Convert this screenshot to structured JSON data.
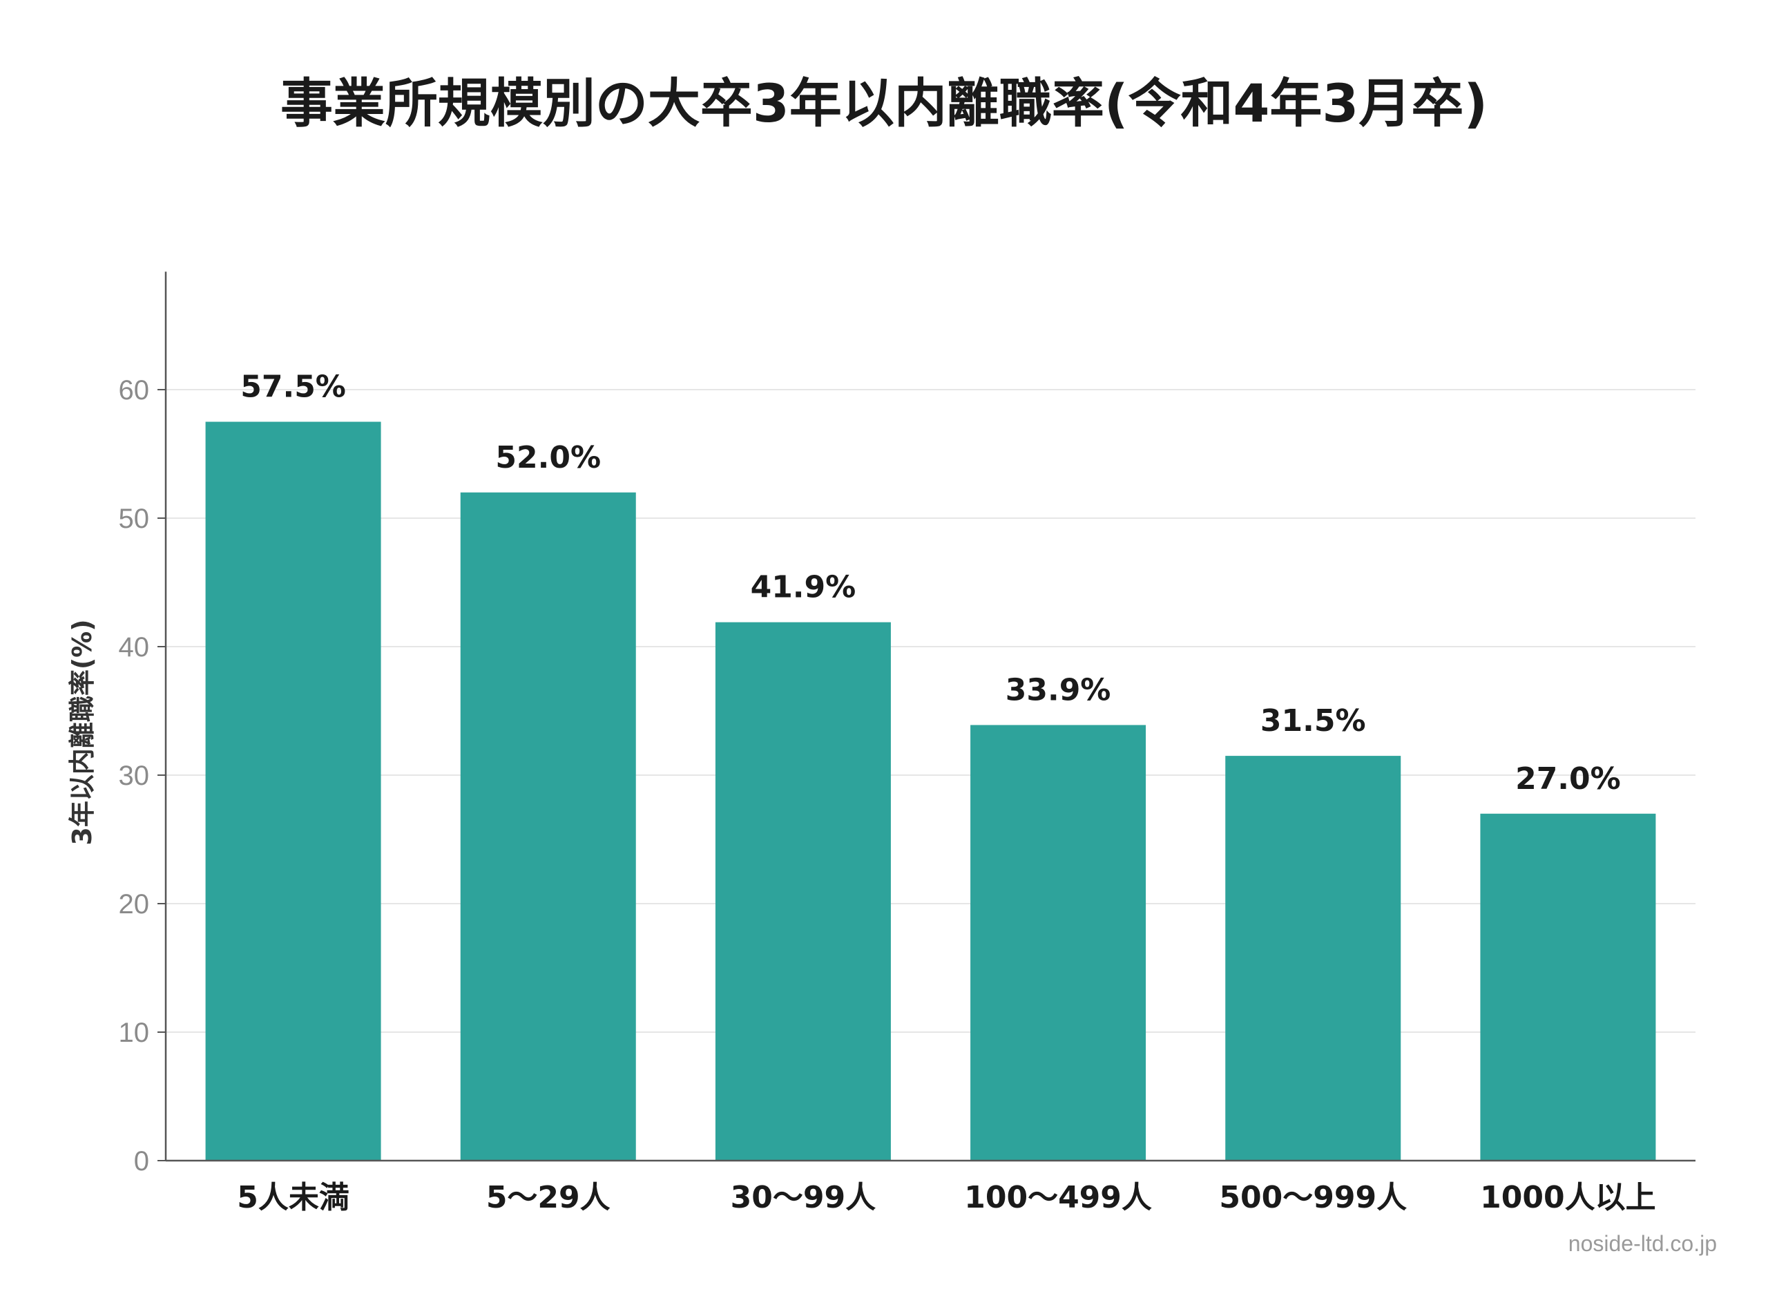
{
  "chart_data": {
    "type": "bar",
    "title": "事業所規模別の大卒3年以内離職率(令和4年3月卒)",
    "ylabel": "3年以内離職率(%)",
    "xlabel": "",
    "categories": [
      "5人未満",
      "5〜29人",
      "30〜99人",
      "100〜499人",
      "500〜999人",
      "1000人以上"
    ],
    "values": [
      57.5,
      52.0,
      41.9,
      33.9,
      31.5,
      27.0
    ],
    "value_labels": [
      "57.5%",
      "52.0%",
      "41.9%",
      "33.9%",
      "31.5%",
      "27.0%"
    ],
    "yticks": [
      0,
      10,
      20,
      30,
      40,
      50,
      60
    ],
    "ylim": [
      0,
      68
    ],
    "grid": true,
    "bar_color": "#2ea39b"
  },
  "watermark": "noside-ltd.co.jp"
}
